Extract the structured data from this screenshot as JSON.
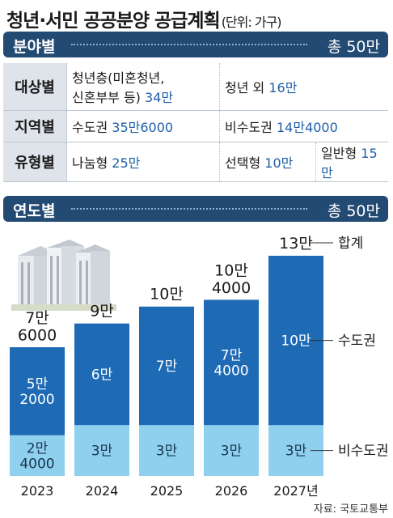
{
  "title": "청년·서민 공공분양 공급계획",
  "unit": "(단위: 가구)",
  "section1": {
    "label": "분야별",
    "total": "총 50만"
  },
  "section2": {
    "label": "연도별",
    "total": "총 50만"
  },
  "table": {
    "rows": [
      {
        "header": "대상별",
        "cells": [
          {
            "text": "청년층(미혼청년,\n신혼부부 등)",
            "value": "34만"
          },
          {
            "text": "청년 외",
            "value": "16만"
          }
        ]
      },
      {
        "header": "지역별",
        "cells": [
          {
            "text": "수도권",
            "value": "35만6000"
          },
          {
            "text": "비수도권",
            "value": "14만4000"
          }
        ]
      },
      {
        "header": "유형별",
        "cells": [
          {
            "text": "나눔형",
            "value": "25만"
          },
          {
            "text": "선택형",
            "value": "10만"
          },
          {
            "text": "일반형",
            "value": "15만"
          }
        ]
      }
    ]
  },
  "chart_data": {
    "type": "bar",
    "stacked": true,
    "categories": [
      "2023",
      "2024",
      "2025",
      "2026",
      "2027년"
    ],
    "series": [
      {
        "name": "비수도권",
        "values": [
          24000,
          30000,
          30000,
          30000,
          30000
        ],
        "labels": [
          "2만\n4000",
          "3만",
          "3만",
          "3만",
          "3만"
        ]
      },
      {
        "name": "수도권",
        "values": [
          52000,
          60000,
          70000,
          74000,
          100000
        ],
        "labels": [
          "5만\n2000",
          "6만",
          "7만",
          "7만\n4000",
          "10만"
        ]
      }
    ],
    "totals": [
      76000,
      90000,
      100000,
      104000,
      130000
    ],
    "total_labels": [
      "7만\n6000",
      "9만",
      "10만",
      "10만\n4000",
      "13만"
    ],
    "total_legend": "합계",
    "colors": {
      "upper": "#1e6ab4",
      "lower": "#8fd0ee"
    }
  },
  "source": "자료: 국토교통부"
}
